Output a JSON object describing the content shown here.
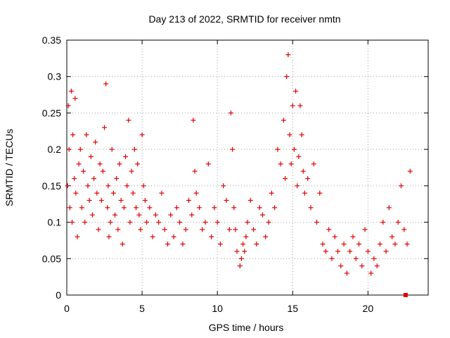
{
  "chart_data": {
    "type": "scatter",
    "title": "Day 213 of 2022, SRMTID for receiver nmtn",
    "xlabel": "GPS time / hours",
    "ylabel": "SRMTID / TECUs",
    "xlim": [
      0,
      24
    ],
    "ylim": [
      0,
      0.35
    ],
    "x_ticks": [
      0,
      5,
      10,
      15,
      20
    ],
    "x_tick_labels": [
      "0",
      "5",
      "10",
      "15",
      "20"
    ],
    "y_ticks": [
      0,
      0.05,
      0.1,
      0.15,
      0.2,
      0.25,
      0.3,
      0.35
    ],
    "y_tick_labels": [
      "0",
      "0.05",
      "0.1",
      "0.15",
      "0.2",
      "0.25",
      "0.3",
      "0.35"
    ],
    "grid": true,
    "marker": "+",
    "marker_color": "#e00000",
    "series": [
      {
        "name": "SRMTID",
        "x": [
          0.05,
          0.1,
          0.15,
          0.2,
          0.3,
          0.35,
          0.4,
          0.5,
          0.55,
          0.6,
          0.7,
          0.8,
          0.9,
          1.0,
          1.1,
          1.2,
          1.3,
          1.4,
          1.5,
          1.6,
          1.7,
          1.8,
          1.9,
          2.0,
          2.1,
          2.2,
          2.3,
          2.4,
          2.5,
          2.6,
          2.7,
          2.75,
          2.8,
          2.9,
          3.0,
          3.1,
          3.2,
          3.3,
          3.4,
          3.5,
          3.6,
          3.7,
          3.8,
          3.9,
          4.0,
          4.1,
          4.2,
          4.3,
          4.4,
          4.5,
          4.6,
          4.7,
          4.8,
          4.9,
          5.0,
          5.1,
          5.2,
          5.3,
          5.5,
          5.7,
          5.9,
          6.1,
          6.3,
          6.5,
          6.7,
          6.9,
          7.1,
          7.3,
          7.5,
          7.7,
          7.9,
          8.1,
          8.3,
          8.4,
          8.5,
          8.6,
          8.8,
          9.0,
          9.2,
          9.4,
          9.6,
          9.8,
          10.0,
          10.2,
          10.4,
          10.6,
          10.8,
          10.9,
          11.0,
          11.1,
          11.2,
          11.3,
          11.5,
          11.6,
          11.7,
          11.8,
          11.9,
          12.0,
          12.2,
          12.4,
          12.6,
          12.8,
          13.0,
          13.2,
          13.4,
          13.6,
          13.8,
          14.0,
          14.2,
          14.4,
          14.5,
          14.6,
          14.7,
          14.8,
          14.9,
          15.0,
          15.1,
          15.2,
          15.3,
          15.4,
          15.5,
          15.6,
          15.7,
          15.8,
          16.0,
          16.2,
          16.4,
          16.6,
          16.8,
          17.0,
          17.2,
          17.4,
          17.6,
          17.8,
          18.0,
          18.2,
          18.4,
          18.6,
          18.8,
          19.0,
          19.2,
          19.4,
          19.6,
          19.8,
          20.0,
          20.2,
          20.4,
          20.6,
          20.8,
          21.0,
          21.2,
          21.4,
          21.6,
          21.8,
          22.0,
          22.2,
          22.4,
          22.6,
          22.8
        ],
        "y": [
          0.15,
          0.26,
          0.2,
          0.12,
          0.28,
          0.1,
          0.22,
          0.16,
          0.27,
          0.14,
          0.08,
          0.18,
          0.2,
          0.12,
          0.17,
          0.1,
          0.22,
          0.15,
          0.13,
          0.19,
          0.11,
          0.16,
          0.21,
          0.14,
          0.09,
          0.18,
          0.13,
          0.17,
          0.23,
          0.29,
          0.12,
          0.15,
          0.08,
          0.1,
          0.2,
          0.14,
          0.11,
          0.16,
          0.09,
          0.18,
          0.13,
          0.07,
          0.12,
          0.19,
          0.15,
          0.24,
          0.1,
          0.17,
          0.14,
          0.2,
          0.12,
          0.18,
          0.11,
          0.09,
          0.22,
          0.15,
          0.13,
          0.1,
          0.12,
          0.08,
          0.11,
          0.1,
          0.14,
          0.09,
          0.07,
          0.11,
          0.08,
          0.12,
          0.1,
          0.07,
          0.09,
          0.13,
          0.11,
          0.24,
          0.17,
          0.14,
          0.12,
          0.09,
          0.1,
          0.18,
          0.08,
          0.12,
          0.1,
          0.07,
          0.15,
          0.13,
          0.09,
          0.25,
          0.2,
          0.12,
          0.09,
          0.06,
          0.04,
          0.05,
          0.07,
          0.06,
          0.08,
          0.1,
          0.13,
          0.09,
          0.07,
          0.12,
          0.11,
          0.08,
          0.1,
          0.14,
          0.12,
          0.2,
          0.18,
          0.24,
          0.16,
          0.3,
          0.33,
          0.22,
          0.18,
          0.26,
          0.2,
          0.28,
          0.15,
          0.19,
          0.26,
          0.22,
          0.17,
          0.14,
          0.16,
          0.12,
          0.18,
          0.1,
          0.14,
          0.07,
          0.06,
          0.09,
          0.05,
          0.08,
          0.06,
          0.04,
          0.07,
          0.03,
          0.06,
          0.08,
          0.05,
          0.07,
          0.04,
          0.09,
          0.06,
          0.03,
          0.05,
          0.04,
          0.07,
          0.1,
          0.06,
          0.12,
          0.08,
          0.07,
          0.1,
          0.15,
          0.09,
          0.07,
          0.17
        ]
      }
    ],
    "marker_square": {
      "x": 22.5,
      "y": 0
    }
  }
}
